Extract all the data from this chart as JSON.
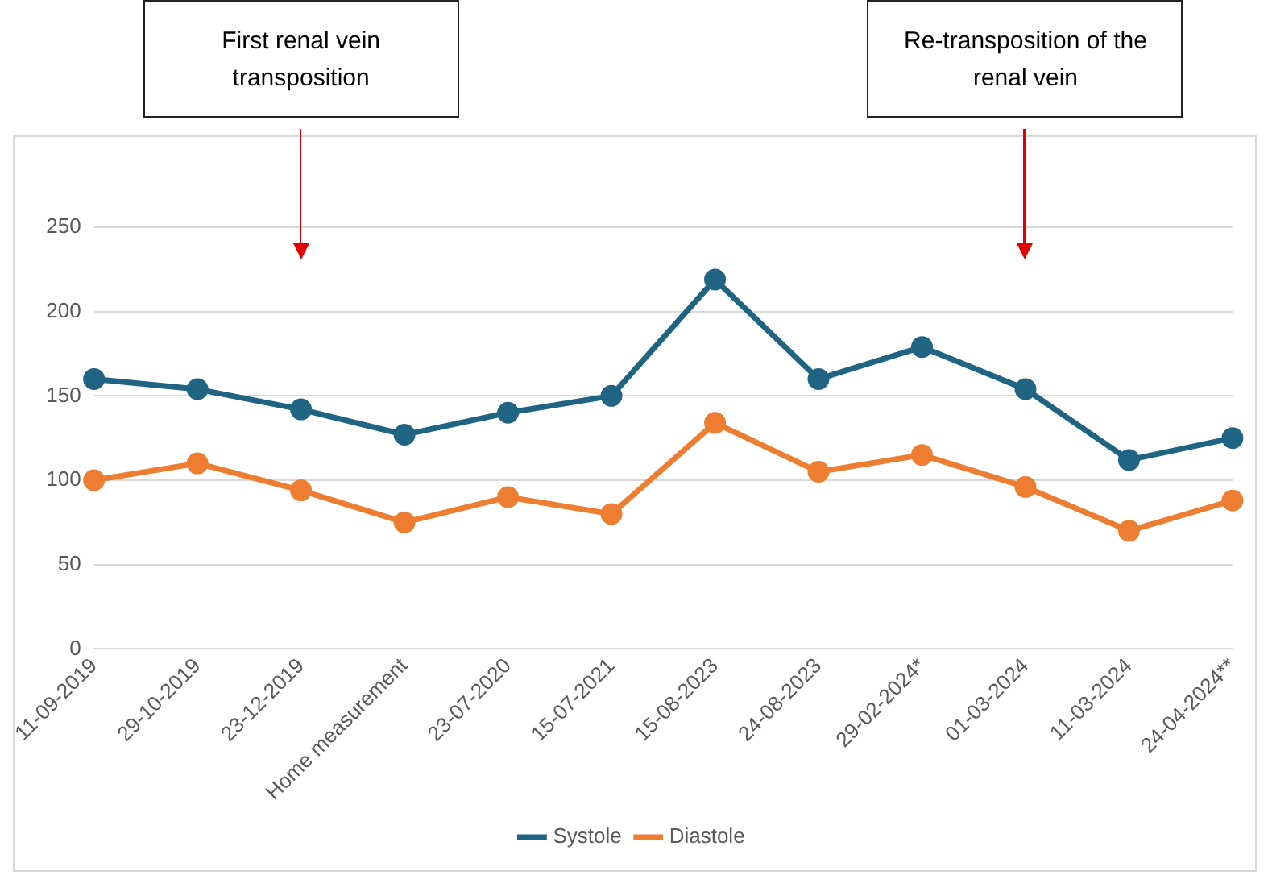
{
  "chart_data": {
    "type": "line",
    "categories": [
      "11-09-2019",
      "29-10-2019",
      "23-12-2019",
      "Home measurement",
      "23-07-2020",
      "15-07-2021",
      "15-08-2023",
      "24-08-2023",
      "29-02-2024*",
      "01-03-2024",
      "11-03-2024",
      "24-04-2024**"
    ],
    "series": [
      {
        "name": "Systole",
        "color": "#1f6482",
        "values": [
          160,
          154,
          142,
          127,
          140,
          150,
          219,
          160,
          179,
          154,
          112,
          125
        ]
      },
      {
        "name": "Diastole",
        "color": "#ed7d31",
        "values": [
          100,
          110,
          94,
          75,
          90,
          80,
          134,
          105,
          115,
          96,
          70,
          88
        ]
      }
    ],
    "ylim": [
      0,
      250
    ],
    "yticks": [
      0,
      50,
      100,
      150,
      200,
      250
    ],
    "grid": "y",
    "legend": "bottom",
    "marker": "circle",
    "line_style": "solid",
    "annotations": [
      "First renal vein transposition",
      "Re-transposition of the renal vein"
    ]
  }
}
